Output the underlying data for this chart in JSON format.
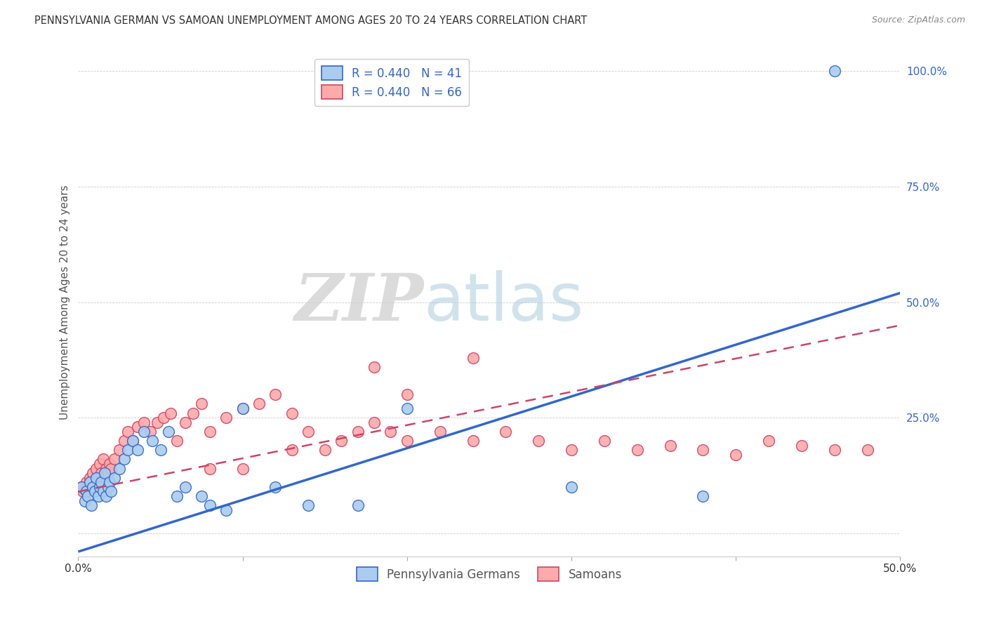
{
  "title": "PENNSYLVANIA GERMAN VS SAMOAN UNEMPLOYMENT AMONG AGES 20 TO 24 YEARS CORRELATION CHART",
  "source": "Source: ZipAtlas.com",
  "ylabel": "Unemployment Among Ages 20 to 24 years",
  "xmin": 0.0,
  "xmax": 0.5,
  "ymin": -0.05,
  "ymax": 1.05,
  "xticks": [
    0.0,
    0.1,
    0.2,
    0.3,
    0.4,
    0.5
  ],
  "yticks": [
    0.0,
    0.25,
    0.5,
    0.75,
    1.0
  ],
  "pg_scatter_x": [
    0.002,
    0.004,
    0.005,
    0.006,
    0.007,
    0.008,
    0.009,
    0.01,
    0.011,
    0.012,
    0.013,
    0.014,
    0.015,
    0.016,
    0.017,
    0.018,
    0.019,
    0.02,
    0.022,
    0.025,
    0.028,
    0.03,
    0.033,
    0.036,
    0.04,
    0.045,
    0.05,
    0.055,
    0.06,
    0.065,
    0.075,
    0.08,
    0.09,
    0.1,
    0.12,
    0.14,
    0.17,
    0.2,
    0.3,
    0.38,
    0.46
  ],
  "pg_scatter_y": [
    0.1,
    0.07,
    0.09,
    0.08,
    0.11,
    0.06,
    0.1,
    0.09,
    0.12,
    0.08,
    0.1,
    0.11,
    0.09,
    0.13,
    0.08,
    0.1,
    0.11,
    0.09,
    0.12,
    0.14,
    0.16,
    0.18,
    0.2,
    0.18,
    0.22,
    0.2,
    0.18,
    0.22,
    0.08,
    0.1,
    0.08,
    0.06,
    0.05,
    0.27,
    0.1,
    0.06,
    0.06,
    0.27,
    0.1,
    0.08,
    1.0
  ],
  "samoan_scatter_x": [
    0.002,
    0.003,
    0.005,
    0.006,
    0.007,
    0.008,
    0.009,
    0.01,
    0.011,
    0.012,
    0.013,
    0.014,
    0.015,
    0.016,
    0.017,
    0.018,
    0.019,
    0.02,
    0.022,
    0.025,
    0.028,
    0.03,
    0.033,
    0.036,
    0.04,
    0.044,
    0.048,
    0.052,
    0.056,
    0.06,
    0.065,
    0.07,
    0.075,
    0.08,
    0.09,
    0.1,
    0.11,
    0.12,
    0.13,
    0.14,
    0.15,
    0.16,
    0.17,
    0.18,
    0.19,
    0.2,
    0.22,
    0.24,
    0.26,
    0.28,
    0.3,
    0.32,
    0.34,
    0.36,
    0.38,
    0.4,
    0.42,
    0.44,
    0.46,
    0.48,
    0.18,
    0.2,
    0.24,
    0.13,
    0.1,
    0.08
  ],
  "samoan_scatter_y": [
    0.1,
    0.09,
    0.11,
    0.1,
    0.12,
    0.11,
    0.13,
    0.1,
    0.14,
    0.12,
    0.15,
    0.13,
    0.16,
    0.12,
    0.14,
    0.13,
    0.15,
    0.14,
    0.16,
    0.18,
    0.2,
    0.22,
    0.2,
    0.23,
    0.24,
    0.22,
    0.24,
    0.25,
    0.26,
    0.2,
    0.24,
    0.26,
    0.28,
    0.22,
    0.25,
    0.27,
    0.28,
    0.3,
    0.26,
    0.22,
    0.18,
    0.2,
    0.22,
    0.24,
    0.22,
    0.3,
    0.22,
    0.2,
    0.22,
    0.2,
    0.18,
    0.2,
    0.18,
    0.19,
    0.18,
    0.17,
    0.2,
    0.19,
    0.18,
    0.18,
    0.36,
    0.2,
    0.38,
    0.18,
    0.14,
    0.14
  ],
  "pg_line_x": [
    0.0,
    0.5
  ],
  "pg_line_y": [
    -0.04,
    0.52
  ],
  "samoan_line_x": [
    0.0,
    0.5
  ],
  "samoan_line_y": [
    0.09,
    0.45
  ],
  "pg_color": "#3366cc",
  "samoan_color": "#cc4466",
  "pg_scatter_color": "#aaccee",
  "samoan_scatter_color": "#ffaaaa",
  "pg_legend_label": "R = 0.440   N = 41",
  "samoan_legend_label": "R = 0.440   N = 66",
  "pg_bottom_label": "Pennsylvania Germans",
  "samoan_bottom_label": "Samoans",
  "watermark_zip": "ZIP",
  "watermark_atlas": "atlas",
  "background_color": "#ffffff",
  "grid_color": "#cccccc"
}
